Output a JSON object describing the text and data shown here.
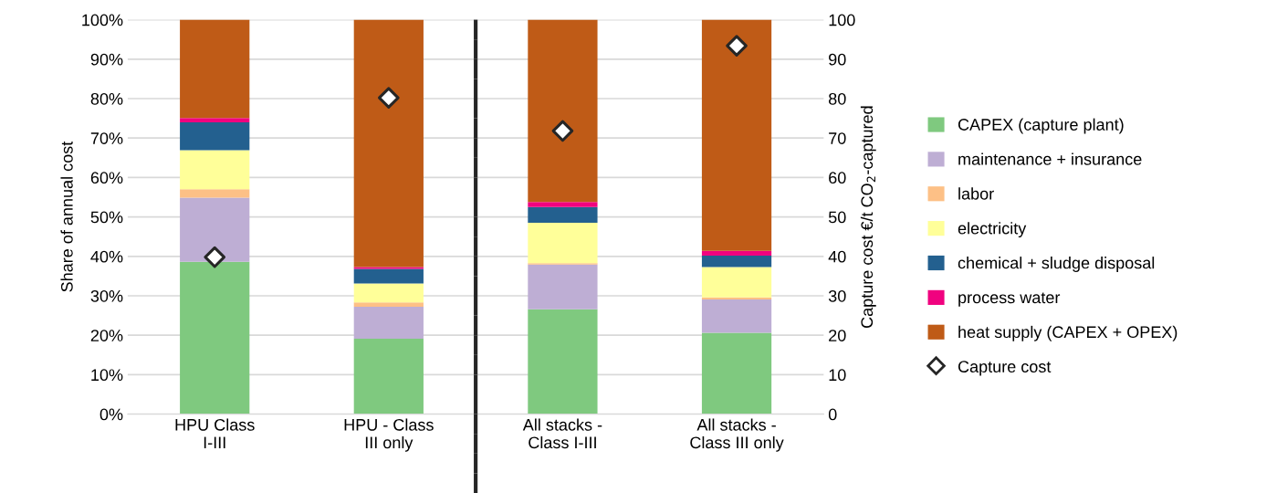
{
  "chart_data": {
    "type": "bar",
    "stacked": true,
    "ylabel": "Share of annual cost",
    "y2label": "Capture cost €/t CO$_{2}$-captured",
    "categories": [
      "HPU Class I-III",
      "HPU - Class III only",
      "All stacks - Class I-III",
      "All stacks - Class III only"
    ],
    "series": [
      {
        "name": "CAPEX (capture plant)",
        "color": "#7fc97f",
        "values": [
          38.6,
          19.1,
          26.6,
          20.6
        ]
      },
      {
        "name": "maintenance + insurance",
        "color": "#beaed4",
        "values": [
          16.3,
          8.1,
          11.3,
          8.5
        ]
      },
      {
        "name": "labor",
        "color": "#fdc086",
        "values": [
          2.1,
          1.1,
          0.4,
          0.5
        ]
      },
      {
        "name": "electricity",
        "color": "#ffff99",
        "values": [
          9.9,
          4.8,
          10.2,
          7.7
        ]
      },
      {
        "name": "chemical + sludge disposal",
        "color": "#23608f",
        "values": [
          7.1,
          3.7,
          4.0,
          2.9
        ]
      },
      {
        "name": "process water",
        "color": "#f0027f",
        "values": [
          1.1,
          0.5,
          1.3,
          1.2
        ]
      },
      {
        "name": "heat supply (CAPEX + OPEX)",
        "color": "#bf5b17",
        "values": [
          24.9,
          62.7,
          46.2,
          58.6
        ]
      },
      {
        "name": "Capture cost",
        "type": "scatter",
        "axis": "y2",
        "marker": "diamond",
        "color": "#ffffff",
        "x": [
          "HPU Class I-III",
          "HPU - Class III only",
          "All stacks - Class I-III",
          "All stacks - Class III only"
        ],
        "values": [
          39.8,
          80.2,
          71.8,
          93.4
        ]
      }
    ],
    "ylim": [
      0,
      100
    ],
    "yticks": [
      {
        "value": 0,
        "label": "0%"
      },
      {
        "value": 10,
        "label": "10%"
      },
      {
        "value": 20,
        "label": "20%"
      },
      {
        "value": 30,
        "label": "30%"
      },
      {
        "value": 40,
        "label": "40%"
      },
      {
        "value": 50,
        "label": "50%"
      },
      {
        "value": 60,
        "label": "60%"
      },
      {
        "value": 70,
        "label": "70%"
      },
      {
        "value": 80,
        "label": "80%"
      },
      {
        "value": 90,
        "label": "90%"
      },
      {
        "value": 100,
        "label": "100%"
      }
    ],
    "y2lim": [
      0,
      100
    ],
    "y2ticks": [
      0,
      10,
      20,
      30,
      40,
      50,
      60,
      70,
      80,
      90,
      100
    ],
    "grid": "y",
    "legend": "right"
  }
}
